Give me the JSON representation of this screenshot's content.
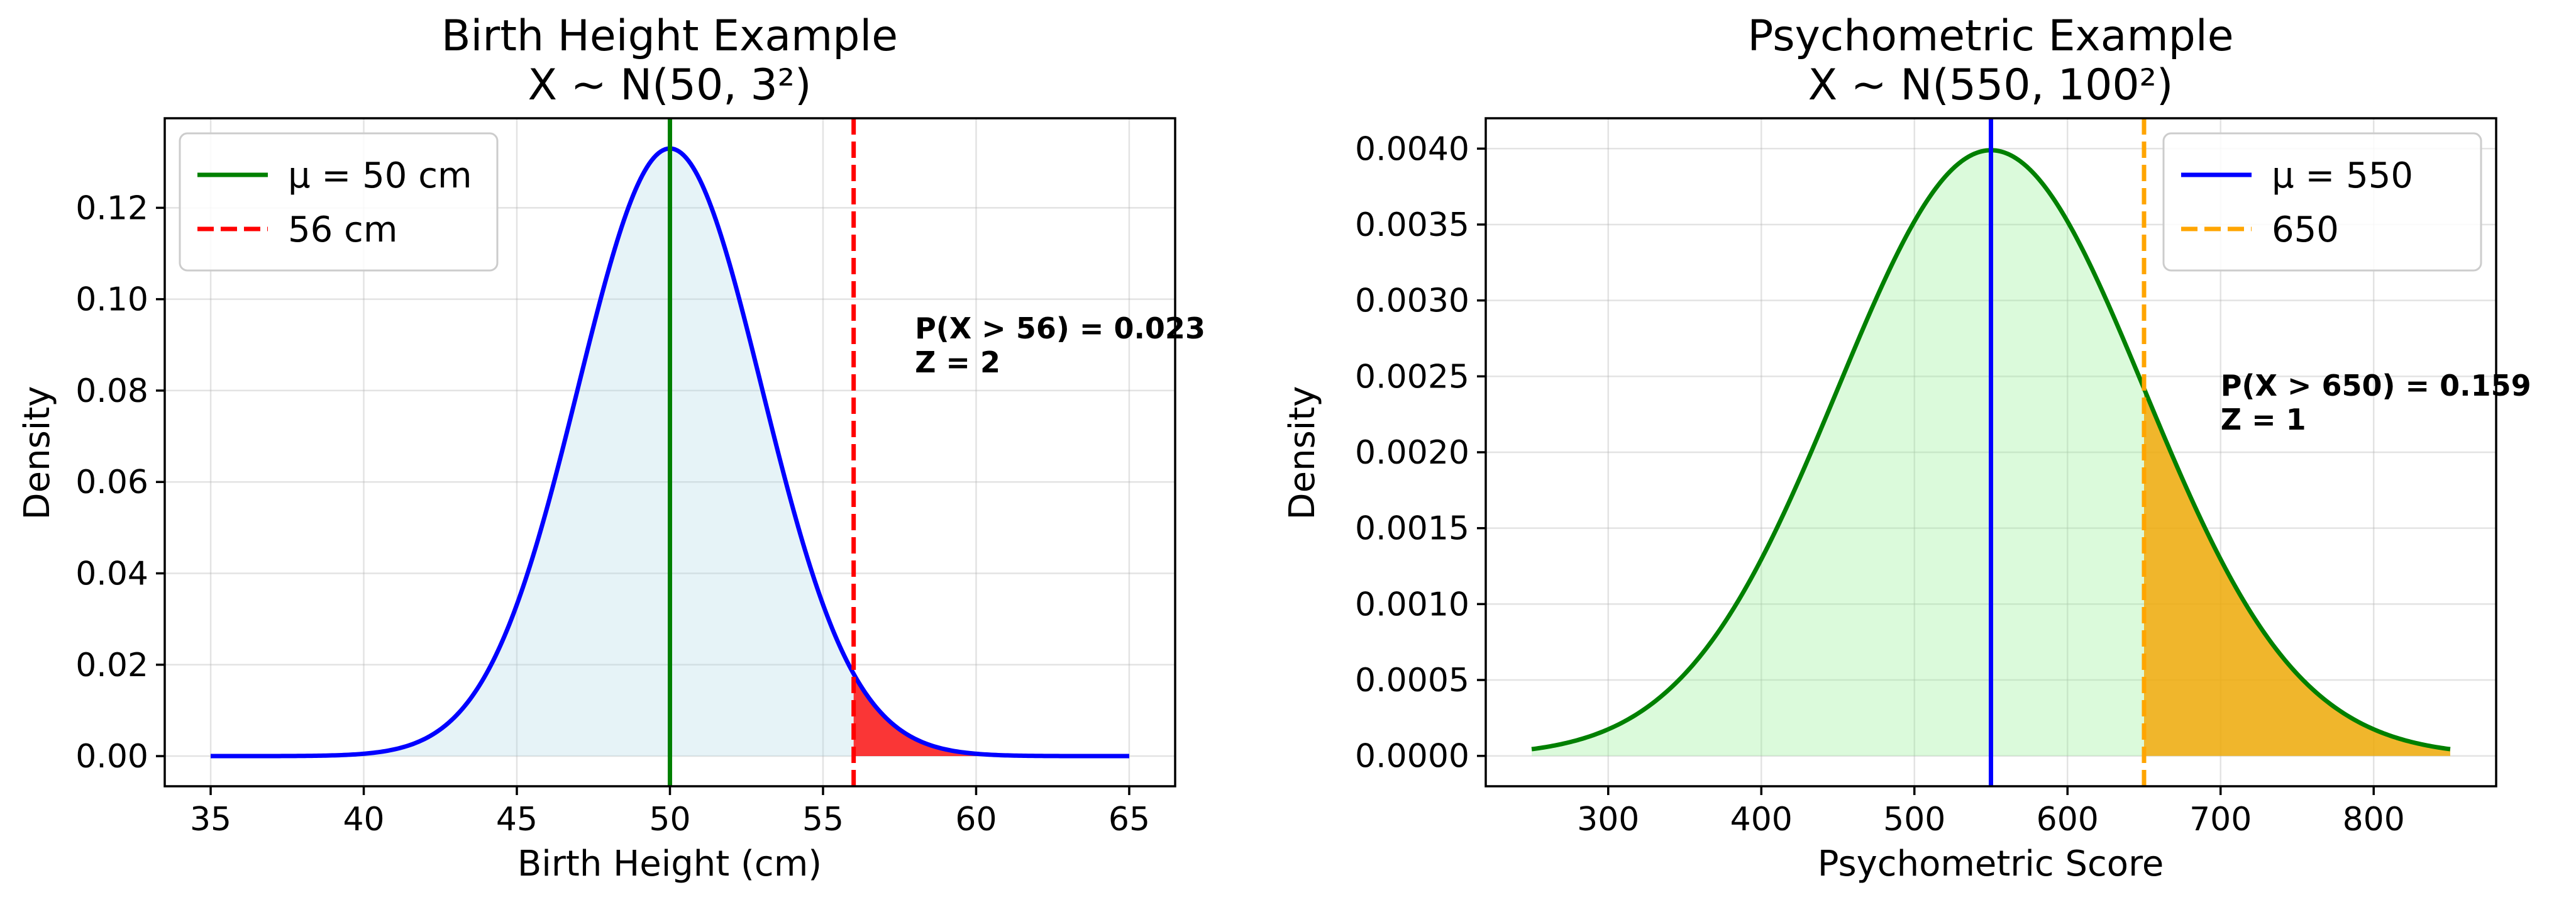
{
  "chart_data": [
    {
      "type": "line",
      "title": "Birth Height Example",
      "subtitle": "X ~ N(50, 3²)",
      "xlabel": "Birth Height (cm)",
      "ylabel": "Density",
      "xlim": [
        33.5,
        66.5
      ],
      "ylim": [
        -0.0066,
        0.1396
      ],
      "xticks": [
        35,
        40,
        45,
        50,
        55,
        60,
        65
      ],
      "xtick_labels": [
        "35",
        "40",
        "45",
        "50",
        "55",
        "60",
        "65"
      ],
      "yticks": [
        0.0,
        0.02,
        0.04,
        0.06,
        0.08,
        0.1,
        0.12
      ],
      "ytick_labels": [
        "0.00",
        "0.02",
        "0.04",
        "0.06",
        "0.08",
        "0.10",
        "0.12"
      ],
      "grid": true,
      "legend_position": "top-left",
      "series": [
        {
          "kind": "pdf",
          "distribution": "normal",
          "mean": 50,
          "sd": 3,
          "x_range": [
            35,
            65
          ],
          "color": "#0000ff",
          "fill_color": "#add8e6",
          "fill_opacity": 0.3
        },
        {
          "kind": "vline",
          "x": 50,
          "name": "μ = 50 cm",
          "color": "#008000",
          "style": "solid"
        },
        {
          "kind": "vline",
          "x": 56,
          "name": "56 cm",
          "color": "#ff0000",
          "style": "dashed"
        },
        {
          "kind": "tail_fill",
          "from": 56,
          "to": 65,
          "color": "#ff0000",
          "fill_opacity": 0.78
        }
      ],
      "annotation": {
        "x": 58,
        "y": 0.084,
        "lines": [
          "P(X > 56) = 0.023",
          "Z = 2"
        ]
      }
    },
    {
      "type": "line",
      "title": "Psychometric Example",
      "subtitle": "X ~ N(550, 100²)",
      "xlabel": "Psychometric Score",
      "ylabel": "Density",
      "xlim": [
        220,
        880
      ],
      "ylim": [
        -0.0002,
        0.0042
      ],
      "xticks": [
        300,
        400,
        500,
        600,
        700,
        800
      ],
      "xtick_labels": [
        "300",
        "400",
        "500",
        "600",
        "700",
        "800"
      ],
      "yticks": [
        0.0,
        0.0005,
        0.001,
        0.0015,
        0.002,
        0.0025,
        0.003,
        0.0035,
        0.004
      ],
      "ytick_labels": [
        "0.0000",
        "0.0005",
        "0.0010",
        "0.0015",
        "0.0020",
        "0.0025",
        "0.0030",
        "0.0035",
        "0.0040"
      ],
      "grid": true,
      "legend_position": "top-right",
      "series": [
        {
          "kind": "pdf",
          "distribution": "normal",
          "mean": 550,
          "sd": 100,
          "x_range": [
            250,
            850
          ],
          "color": "#008000",
          "fill_color": "#90ee90",
          "fill_opacity": 0.32
        },
        {
          "kind": "vline",
          "x": 550,
          "name": "μ = 550",
          "color": "#0000ff",
          "style": "solid"
        },
        {
          "kind": "vline",
          "x": 650,
          "name": "650",
          "color": "#ffa500",
          "style": "dashed"
        },
        {
          "kind": "tail_fill",
          "from": 650,
          "to": 850,
          "color": "#f5a500",
          "fill_opacity": 0.8
        }
      ],
      "annotation": {
        "x": 700,
        "y": 0.00215,
        "lines": [
          "P(X > 650) = 0.159",
          "Z = 1"
        ]
      }
    }
  ]
}
